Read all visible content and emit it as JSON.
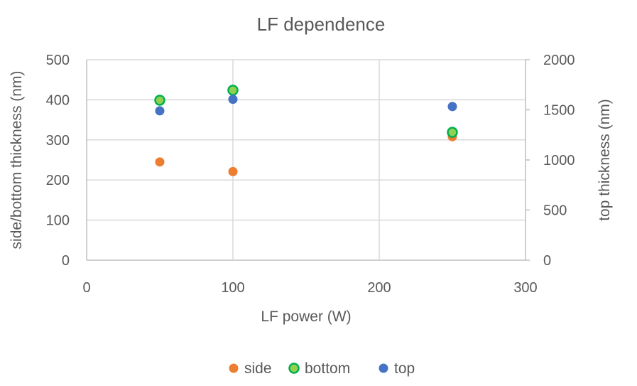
{
  "chart_data": {
    "type": "scatter",
    "title": "LF dependence",
    "xlabel": "LF power (W)",
    "ylabel": "side/bottom thickness (nm)",
    "y2label": "top thickness (nm)",
    "xlim": [
      0,
      300
    ],
    "ylim": [
      0,
      500
    ],
    "y2lim": [
      0,
      2000
    ],
    "x_ticks": [
      0,
      100,
      200,
      300
    ],
    "y_ticks": [
      0,
      100,
      200,
      300,
      400,
      500
    ],
    "y2_ticks": [
      0,
      500,
      1000,
      1500,
      2000
    ],
    "grid": true,
    "legend_position": "bottom",
    "series": [
      {
        "name": "side",
        "axis": "left",
        "color": "#ed7d31",
        "marker": "circle",
        "points": [
          [
            50,
            245
          ],
          [
            100,
            221
          ],
          [
            250,
            308
          ]
        ]
      },
      {
        "name": "bottom",
        "axis": "left",
        "color": "#92d050",
        "edge_color": "#00b050",
        "marker": "circle",
        "points": [
          [
            50,
            399
          ],
          [
            100,
            424
          ],
          [
            250,
            319
          ]
        ]
      },
      {
        "name": "top",
        "axis": "right",
        "color": "#4472c4",
        "marker": "circle",
        "points": [
          [
            50,
            1490
          ],
          [
            100,
            1605
          ],
          [
            250,
            1533
          ]
        ]
      }
    ]
  }
}
